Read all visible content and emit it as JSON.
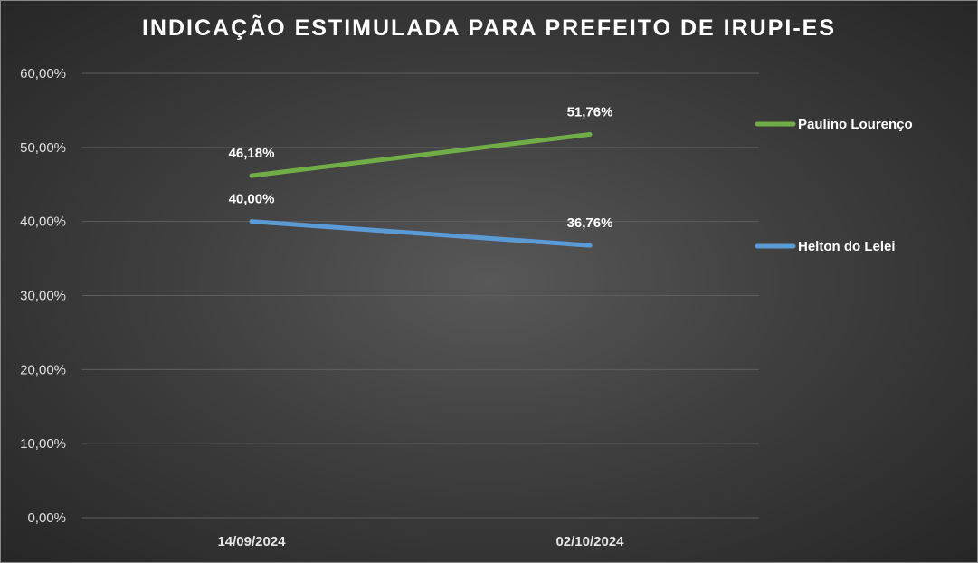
{
  "chart_data": {
    "type": "line",
    "title": "INDICAÇÃO ESTIMULADA PARA PREFEITO DE IRUPI-ES",
    "categories": [
      "14/09/2024",
      "02/10/2024"
    ],
    "series": [
      {
        "name": "Paulino Lourenço",
        "values": [
          46.18,
          51.76
        ],
        "labels": [
          "46,18%",
          "51,76%"
        ],
        "color": "#70ad47"
      },
      {
        "name": "Helton do Lelei",
        "values": [
          40.0,
          36.76
        ],
        "labels": [
          "40,00%",
          "36,76%"
        ],
        "color": "#5b9bd5"
      }
    ],
    "ylim": [
      0,
      60
    ],
    "yticks": [
      0,
      10,
      20,
      30,
      40,
      50,
      60
    ],
    "ytick_labels": [
      "0,00%",
      "10,00%",
      "20,00%",
      "30,00%",
      "40,00%",
      "50,00%",
      "60,00%"
    ],
    "grid": true,
    "legend": "right"
  }
}
